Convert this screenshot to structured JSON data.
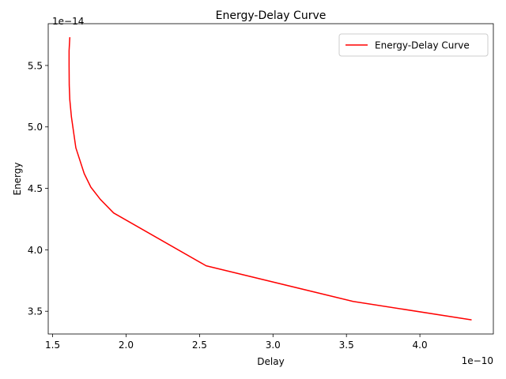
{
  "chart_data": {
    "type": "line",
    "title": "Energy-Delay Curve",
    "xlabel": "Delay",
    "ylabel": "Energy",
    "x_offset_text": "1e−10",
    "y_offset_text": "1e−14",
    "xlim": [
      1.47,
      4.5
    ],
    "ylim": [
      3.315,
      5.84
    ],
    "x_ticks": [
      1.5,
      2.0,
      2.5,
      3.0,
      3.5,
      4.0
    ],
    "x_tick_labels": [
      "1.5",
      "2.0",
      "2.5",
      "3.0",
      "3.5",
      "4.0"
    ],
    "y_ticks": [
      3.5,
      4.0,
      4.5,
      5.0,
      5.5
    ],
    "y_tick_labels": [
      "3.5",
      "4.0",
      "4.5",
      "5.0",
      "5.5"
    ],
    "grid": false,
    "legend_position": "upper right",
    "series": [
      {
        "name": "Energy-Delay Curve",
        "color": "#ff0000",
        "x": [
          1.617,
          1.612,
          1.612,
          1.613,
          1.617,
          1.628,
          1.658,
          1.715,
          1.76,
          1.825,
          1.915,
          2.545,
          3.545,
          4.352
        ],
        "y": [
          5.73,
          5.62,
          5.5,
          5.34,
          5.22,
          5.08,
          4.83,
          4.62,
          4.51,
          4.41,
          4.3,
          3.87,
          3.58,
          3.43
        ]
      }
    ]
  }
}
